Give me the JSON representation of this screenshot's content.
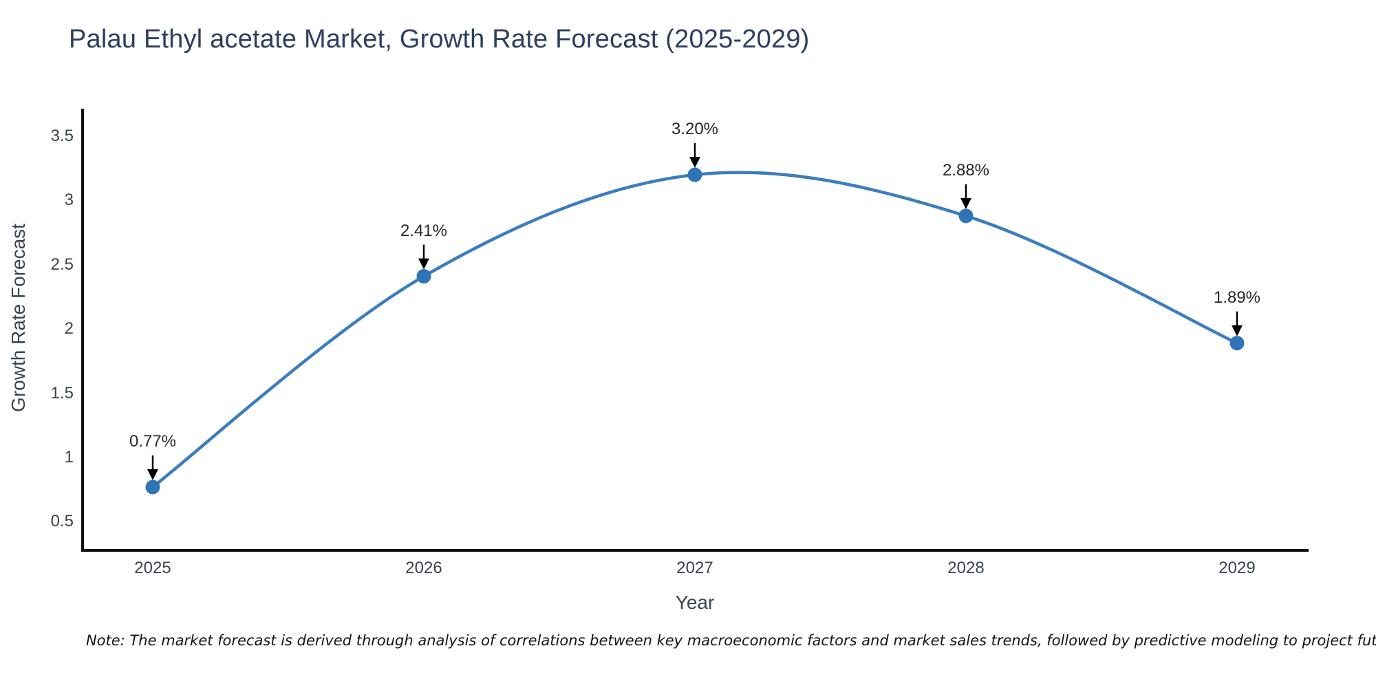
{
  "note": "Note: The market forecast is derived through analysis of correlations between key macroeconomic factors and market sales trends, followed by predictive modeling to project future sales",
  "chart_data": {
    "type": "line",
    "title": "Palau Ethyl acetate Market, Growth Rate Forecast (2025-2029)",
    "xlabel": "Year",
    "ylabel": "Growth Rate Forecast",
    "categories": [
      "2025",
      "2026",
      "2027",
      "2028",
      "2029"
    ],
    "values": [
      0.77,
      2.41,
      3.2,
      2.88,
      1.89
    ],
    "point_labels": [
      "0.77%",
      "2.41%",
      "3.20%",
      "2.88%",
      "1.89%"
    ],
    "y_ticks": [
      "3.5",
      "3",
      "2.5",
      "2",
      "1.5",
      "1",
      "0.5"
    ],
    "y_tick_values": [
      3.5,
      3.0,
      2.5,
      2.0,
      1.5,
      1.0,
      0.5
    ],
    "ylim": [
      0.26,
      3.7
    ],
    "grid": false,
    "legend": "none",
    "curve": "spline",
    "marker": "circle",
    "annotation_arrows": true,
    "colors": {
      "line": "#3c7dbe",
      "marker": "#2f74b4",
      "axis": "#111111",
      "arrow": "#000000",
      "title": "#2d3e5e",
      "tick": "#3b4252",
      "annotation": "#23282f",
      "background": "#ffffff"
    }
  }
}
